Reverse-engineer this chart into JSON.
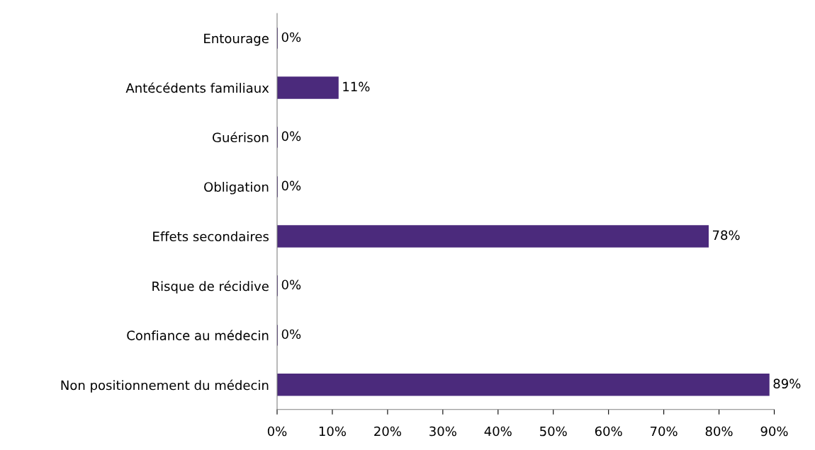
{
  "chart_data": {
    "type": "bar",
    "orientation": "horizontal",
    "categories": [
      "Entourage",
      "Antécédents familiaux",
      "Guérison",
      "Obligation",
      "Effets secondaires",
      "Risque de récidive",
      "Confiance au médecin",
      "Non positionnement du médecin"
    ],
    "values": [
      0,
      11,
      0,
      0,
      78,
      0,
      0,
      89
    ],
    "value_labels": [
      "0%",
      "11%",
      "0%",
      "0%",
      "78%",
      "0%",
      "0%",
      "89%"
    ],
    "color": "#4b2a7c",
    "xlim": [
      0,
      90
    ],
    "xticks": [
      {
        "value": 0,
        "label": "0%"
      },
      {
        "value": 10,
        "label": "10%"
      },
      {
        "value": 20,
        "label": "20%"
      },
      {
        "value": 30,
        "label": "30%"
      },
      {
        "value": 40,
        "label": "40%"
      },
      {
        "value": 50,
        "label": "50%"
      },
      {
        "value": 60,
        "label": "60%"
      },
      {
        "value": 70,
        "label": "70%"
      },
      {
        "value": 80,
        "label": "80%"
      },
      {
        "value": 90,
        "label": "90%"
      }
    ],
    "grid": false
  }
}
